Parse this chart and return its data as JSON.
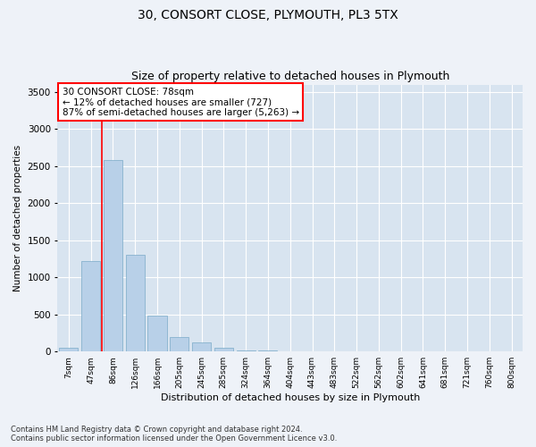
{
  "title1": "30, CONSORT CLOSE, PLYMOUTH, PL3 5TX",
  "title2": "Size of property relative to detached houses in Plymouth",
  "xlabel": "Distribution of detached houses by size in Plymouth",
  "ylabel": "Number of detached properties",
  "footnote": "Contains HM Land Registry data © Crown copyright and database right 2024.\nContains public sector information licensed under the Open Government Licence v3.0.",
  "bar_labels": [
    "7sqm",
    "47sqm",
    "86sqm",
    "126sqm",
    "166sqm",
    "205sqm",
    "245sqm",
    "285sqm",
    "324sqm",
    "364sqm",
    "404sqm",
    "443sqm",
    "483sqm",
    "522sqm",
    "562sqm",
    "602sqm",
    "641sqm",
    "681sqm",
    "721sqm",
    "760sqm",
    "800sqm"
  ],
  "bar_values": [
    50,
    1220,
    2580,
    1310,
    480,
    200,
    125,
    50,
    20,
    10,
    5,
    5,
    5,
    3,
    3,
    3,
    3,
    3,
    3,
    3,
    3
  ],
  "bar_color": "#b8d0e8",
  "bar_edgecolor": "#7aaac8",
  "vline_x": 1.5,
  "vline_color": "red",
  "annotation_text": "30 CONSORT CLOSE: 78sqm\n← 12% of detached houses are smaller (727)\n87% of semi-detached houses are larger (5,263) →",
  "annotation_box_facecolor": "white",
  "annotation_box_edgecolor": "red",
  "ylim": [
    0,
    3600
  ],
  "yticks": [
    0,
    500,
    1000,
    1500,
    2000,
    2500,
    3000,
    3500
  ],
  "bg_color": "#eef2f8",
  "plot_bg_color": "#d8e4f0",
  "title1_fontsize": 10,
  "title2_fontsize": 9,
  "xlabel_fontsize": 8,
  "ylabel_fontsize": 7.5,
  "xtick_fontsize": 6.5,
  "ytick_fontsize": 7.5,
  "annotation_fontsize": 7.5,
  "footnote_fontsize": 6
}
